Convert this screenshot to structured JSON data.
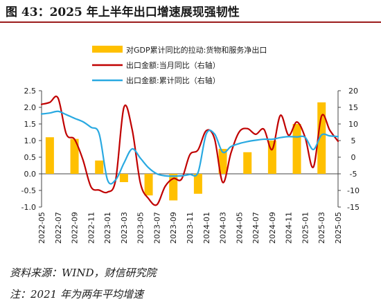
{
  "title": "图 43：2025 年上半年出口增速展现强韧性",
  "source": "资料来源：WIND，财信研究院",
  "note": "注：2021 年为两年平均增速",
  "colors": {
    "title_rule": "#9b1b1b",
    "bar": "#ffc000",
    "line_month": "#c00000",
    "line_cum": "#29a9e1"
  },
  "chart_data": {
    "type": "bar",
    "months": [
      "2022-05",
      "2022-06",
      "2022-07",
      "2022-08",
      "2022-09",
      "2022-10",
      "2022-11",
      "2022-12",
      "2023-01",
      "2023-02",
      "2023-03",
      "2023-04",
      "2023-05",
      "2023-06",
      "2023-07",
      "2023-08",
      "2023-09",
      "2023-10",
      "2023-11",
      "2023-12",
      "2024-01",
      "2024-02",
      "2024-03",
      "2024-04",
      "2024-05",
      "2024-06",
      "2024-07",
      "2024-08",
      "2024-09",
      "2024-10",
      "2024-11",
      "2024-12",
      "2025-01",
      "2025-02",
      "2025-03",
      "2025-04",
      "2025-05"
    ],
    "tick_labels": [
      "2022-05",
      "2022-07",
      "2022-09",
      "2022-11",
      "2023-01",
      "2023-03",
      "2023-05",
      "2023-07",
      "2023-09",
      "2023-11",
      "2024-01",
      "2024-03",
      "2024-05",
      "2024-07",
      "2024-09",
      "2024-11",
      "2025-01",
      "2025-03",
      "2025-05"
    ],
    "y_left": {
      "ylim": [
        -1.0,
        2.5
      ],
      "ticks": [
        "2.5",
        "2.0",
        "1.5",
        "1.0",
        "0.5",
        "0.0",
        "-0.5",
        "-1.0"
      ]
    },
    "y_right": {
      "ylim": [
        -15,
        20
      ],
      "ticks": [
        "20",
        "15",
        "10",
        "5",
        "0",
        "-5",
        "-10",
        "-15"
      ]
    },
    "series": [
      {
        "name": "对GDP累计同比的拉动:货物和服务净出口",
        "type": "bar",
        "axis": "left",
        "points": [
          [
            "2022-06",
            1.1
          ],
          [
            "2022-09",
            1.05
          ],
          [
            "2022-12",
            0.4
          ],
          [
            "2023-03",
            -0.25
          ],
          [
            "2023-06",
            -0.65
          ],
          [
            "2023-09",
            -0.8
          ],
          [
            "2023-12",
            -0.6
          ],
          [
            "2024-03",
            0.75
          ],
          [
            "2024-06",
            0.65
          ],
          [
            "2024-09",
            1.0
          ],
          [
            "2024-12",
            1.5
          ],
          [
            "2025-03",
            2.15
          ]
        ]
      },
      {
        "name": "出口金额:当月同比（右轴）",
        "type": "line",
        "axis": "right",
        "values": [
          15.9,
          16.5,
          17.8,
          7.0,
          5.4,
          -0.6,
          -8.9,
          -9.9,
          -10.5,
          -6.8,
          15.0,
          8.3,
          -7.8,
          -12.5,
          -14.3,
          -8.8,
          -6.4,
          -6.6,
          0.7,
          2.2,
          8.0,
          5.6,
          -7.6,
          1.3,
          7.6,
          8.6,
          6.9,
          8.4,
          2.3,
          12.6,
          6.6,
          10.6,
          6.0,
          -3.0,
          12.4,
          8.1,
          4.8
        ]
      },
      {
        "name": "出口金额:累计同比（右轴）",
        "type": "line",
        "axis": "right",
        "values": [
          13.0,
          13.3,
          13.8,
          12.8,
          11.7,
          10.7,
          9.0,
          7.0,
          -6.8,
          -6.8,
          -1.8,
          2.5,
          -0.3,
          -3.2,
          -5.0,
          -5.6,
          -5.7,
          -5.6,
          -5.2,
          -4.6,
          7.0,
          7.0,
          1.5,
          3.2,
          4.1,
          4.7,
          5.1,
          5.4,
          5.4,
          5.9,
          6.2,
          6.1,
          6.0,
          2.3,
          6.7,
          6.4,
          6.2
        ]
      }
    ]
  }
}
